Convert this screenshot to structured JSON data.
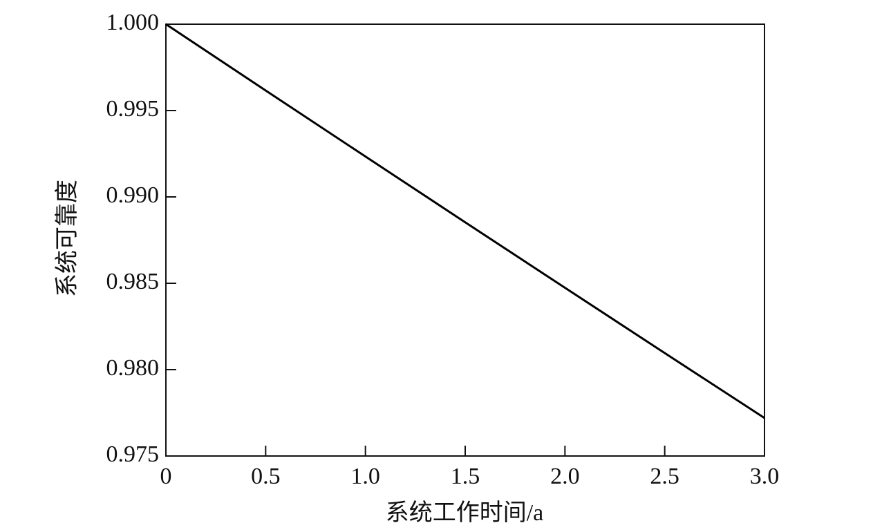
{
  "chart_data": {
    "type": "line",
    "x_label": "系统工作时间/a",
    "y_label": "系统可靠度",
    "x": [
      0,
      0.5,
      1.0,
      1.5,
      2.0,
      2.5,
      3.0
    ],
    "series": [
      {
        "name": "系统可靠度",
        "color": "#000000",
        "values": [
          1.0,
          0.99616,
          0.99234,
          0.98853,
          0.98474,
          0.98096,
          0.9772
        ]
      }
    ],
    "xlim": [
      0,
      3
    ],
    "xticks": [
      0,
      0.5,
      {
        "value": 1,
        "label": "1.0"
      },
      1.5,
      {
        "value": 2,
        "label": "2.0"
      },
      2.5,
      {
        "value": 3,
        "label": "3.0"
      }
    ],
    "ylim": [
      0.975,
      1.0
    ],
    "yticks": [
      0.975,
      {
        "value": 0.98,
        "label": "0.980"
      },
      0.985,
      {
        "value": 0.99,
        "label": "0.990"
      },
      0.995,
      {
        "value": 1,
        "label": "1.000"
      }
    ],
    "grid": false
  }
}
